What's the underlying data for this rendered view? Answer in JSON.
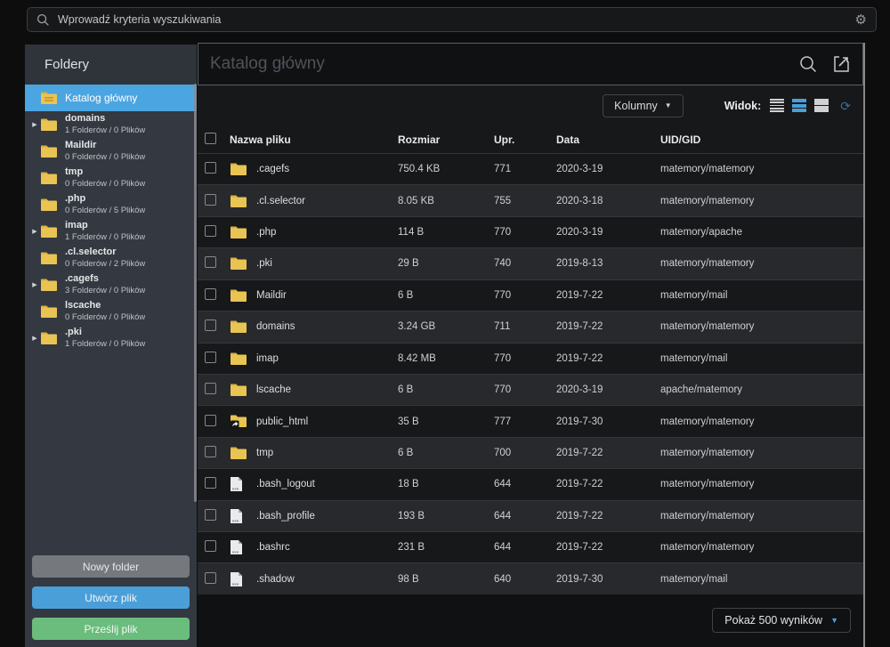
{
  "colors": {
    "accent_blue": "#4a9fd8",
    "selected_blue": "#4ba5e1",
    "button_green": "#6abd7c",
    "button_gray": "#75787d",
    "folder_yellow": "#e9c452",
    "sidebar_bg": "#343840",
    "row_dark": "#17181a",
    "row_light": "#28292c"
  },
  "icons": {
    "gear": "⚙",
    "refresh": "⟳",
    "caret_down": "▼",
    "expander": "▶"
  },
  "topbar": {
    "search_placeholder": "Wprowadź kryteria wyszukiwania"
  },
  "sidebar": {
    "title": "Foldery",
    "items": [
      {
        "name": "Katalog główny",
        "info": "",
        "selected": true,
        "expandable": false
      },
      {
        "name": "domains",
        "info": "1 Folderów / 0 Plików",
        "selected": false,
        "expandable": true
      },
      {
        "name": "Maildir",
        "info": "0 Folderów / 0 Plików",
        "selected": false,
        "expandable": false
      },
      {
        "name": "tmp",
        "info": "0 Folderów / 0 Plików",
        "selected": false,
        "expandable": false
      },
      {
        "name": ".php",
        "info": "0 Folderów / 5 Plików",
        "selected": false,
        "expandable": false
      },
      {
        "name": "imap",
        "info": "1 Folderów / 0 Plików",
        "selected": false,
        "expandable": true
      },
      {
        "name": ".cl.selector",
        "info": "0 Folderów / 2 Plików",
        "selected": false,
        "expandable": false
      },
      {
        "name": ".cagefs",
        "info": "3 Folderów / 0 Plików",
        "selected": false,
        "expandable": true
      },
      {
        "name": "lscache",
        "info": "0 Folderów / 0 Plików",
        "selected": false,
        "expandable": false
      },
      {
        "name": ".pki",
        "info": "1 Folderów / 0 Plików",
        "selected": false,
        "expandable": true
      }
    ],
    "buttons": [
      {
        "label": "Nowy folder",
        "variant": "gray"
      },
      {
        "label": "Utwórz plik",
        "variant": "blue"
      },
      {
        "label": "Prześlij plik",
        "variant": "green"
      }
    ]
  },
  "main": {
    "title": "Katalog główny",
    "toolbar": {
      "columns_label": "Kolumny",
      "view_label": "Widok:"
    },
    "table": {
      "headers": [
        "Nazwa pliku",
        "Rozmiar",
        "Upr.",
        "Data",
        "UID/GID"
      ],
      "rows": [
        {
          "icon": "folder",
          "name": ".cagefs",
          "size": "750.4 KB",
          "perm": "771",
          "date": "2020-3-19",
          "uidgid": "matemory/matemory"
        },
        {
          "icon": "folder",
          "name": ".cl.selector",
          "size": "8.05 KB",
          "perm": "755",
          "date": "2020-3-18",
          "uidgid": "matemory/matemory"
        },
        {
          "icon": "folder",
          "name": ".php",
          "size": "114 B",
          "perm": "770",
          "date": "2020-3-19",
          "uidgid": "matemory/apache"
        },
        {
          "icon": "folder",
          "name": ".pki",
          "size": "29 B",
          "perm": "740",
          "date": "2019-8-13",
          "uidgid": "matemory/matemory"
        },
        {
          "icon": "folder",
          "name": "Maildir",
          "size": "6 B",
          "perm": "770",
          "date": "2019-7-22",
          "uidgid": "matemory/mail"
        },
        {
          "icon": "folder",
          "name": "domains",
          "size": "3.24 GB",
          "perm": "711",
          "date": "2019-7-22",
          "uidgid": "matemory/matemory"
        },
        {
          "icon": "folder",
          "name": "imap",
          "size": "8.42 MB",
          "perm": "770",
          "date": "2019-7-22",
          "uidgid": "matemory/mail"
        },
        {
          "icon": "folder",
          "name": "lscache",
          "size": "6 B",
          "perm": "770",
          "date": "2020-3-19",
          "uidgid": "apache/matemory"
        },
        {
          "icon": "folder-link",
          "name": "public_html",
          "size": "35 B",
          "perm": "777",
          "date": "2019-7-30",
          "uidgid": "matemory/matemory"
        },
        {
          "icon": "folder",
          "name": "tmp",
          "size": "6 B",
          "perm": "700",
          "date": "2019-7-22",
          "uidgid": "matemory/matemory"
        },
        {
          "icon": "file",
          "name": ".bash_logout",
          "size": "18 B",
          "perm": "644",
          "date": "2019-7-22",
          "uidgid": "matemory/matemory"
        },
        {
          "icon": "file",
          "name": ".bash_profile",
          "size": "193 B",
          "perm": "644",
          "date": "2019-7-22",
          "uidgid": "matemory/matemory"
        },
        {
          "icon": "file",
          "name": ".bashrc",
          "size": "231 B",
          "perm": "644",
          "date": "2019-7-22",
          "uidgid": "matemory/matemory"
        },
        {
          "icon": "file",
          "name": ".shadow",
          "size": "98 B",
          "perm": "640",
          "date": "2019-7-30",
          "uidgid": "matemory/mail"
        }
      ]
    },
    "footer": {
      "results_label": "Pokaż 500 wyników"
    }
  }
}
